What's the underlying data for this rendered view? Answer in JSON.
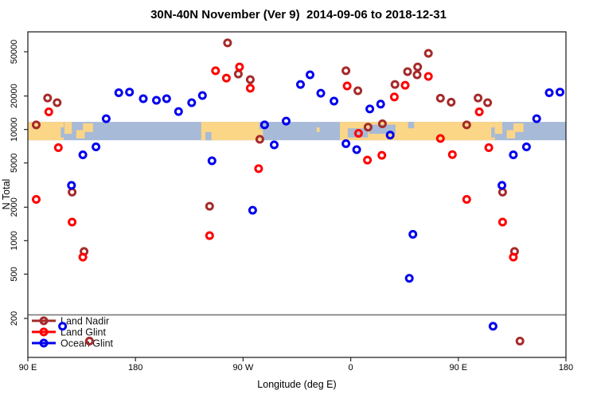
{
  "title": "30N-40N November (Ver 9)  2014-09-06 to 2018-12-31",
  "legend": {
    "entries": [
      {
        "label": "Land Nadir",
        "color": "#A52A2A"
      },
      {
        "label": "Land Glint",
        "color": "#FF0000"
      },
      {
        "label": "Ocean Glint",
        "color": "#0000EE"
      }
    ]
  },
  "chart_data": {
    "type": "scatter",
    "title": "30N-40N November (Ver 9)  2014-09-06 to 2018-12-31",
    "xlabel": "Longitude (deg E)",
    "ylabel": "N Total",
    "y_scale": "log",
    "x_axis": {
      "lon_plot_range": [
        90,
        540
      ],
      "tick_lon_plot": [
        90,
        180,
        270,
        360,
        450,
        540
      ],
      "tick_labels": [
        "90 E",
        "180",
        "90 W",
        "0",
        "90 E",
        "180"
      ],
      "note": "axis spans 450 deg of longitude; points with lon 90E-180E are drawn twice (wrap-around)"
    },
    "y_axis": {
      "ticks": [
        50000,
        20000,
        10000,
        5000,
        2000,
        1000,
        500,
        200
      ],
      "tick_labels": [
        "50000",
        "20000",
        "10000",
        "5000",
        "2000",
        "1000",
        "500",
        "200"
      ]
    },
    "threshold_line_n": 215,
    "series": [
      {
        "name": "Land Nadir",
        "color": "#A52A2A",
        "points": [
          [
            106.5,
            19200
          ],
          [
            114.5,
            17400
          ],
          [
            97,
            11000
          ],
          [
            127,
            2730
          ],
          [
            137,
            800
          ],
          [
            141.5,
            125
          ],
          [
            242,
            2040
          ],
          [
            257,
            60000
          ],
          [
            266,
            31500
          ],
          [
            276,
            28100
          ],
          [
            284,
            8160
          ],
          [
            356,
            33700
          ],
          [
            6,
            22300
          ],
          [
            14.5,
            10500
          ],
          [
            26.5,
            11250
          ],
          [
            37,
            25400
          ],
          [
            47.5,
            33100
          ],
          [
            56,
            36500
          ],
          [
            55.5,
            31000
          ],
          [
            65,
            48400
          ],
          [
            75,
            19100
          ],
          [
            84,
            17600
          ]
        ]
      },
      {
        "name": "Land Glint",
        "color": "#FF0000",
        "points": [
          [
            107.5,
            14400
          ],
          [
            115.5,
            6860
          ],
          [
            97,
            2350
          ],
          [
            127,
            1470
          ],
          [
            136,
            712
          ],
          [
            242,
            1110
          ],
          [
            247,
            33700
          ],
          [
            256,
            29000
          ],
          [
            267,
            36500
          ],
          [
            276,
            23500
          ],
          [
            283,
            4440
          ],
          [
            357,
            24600
          ],
          [
            6.5,
            9230
          ],
          [
            14,
            5310
          ],
          [
            26,
            5860
          ],
          [
            36.5,
            19600
          ],
          [
            45.5,
            25000
          ],
          [
            65,
            30000
          ],
          [
            75,
            8300
          ],
          [
            85,
            5950
          ]
        ]
      },
      {
        "name": "Ocean Glint",
        "color": "#0000EE",
        "points": [
          [
            155.5,
            12500
          ],
          [
            147,
            6980
          ],
          [
            136,
            5920
          ],
          [
            126.5,
            3140
          ],
          [
            119,
            170
          ],
          [
            166,
            21400
          ],
          [
            175,
            21700
          ],
          [
            186.5,
            18900
          ],
          [
            197.5,
            18300
          ],
          [
            206,
            18900
          ],
          [
            216,
            14500
          ],
          [
            227,
            17400
          ],
          [
            236,
            20200
          ],
          [
            244,
            5230
          ],
          [
            278,
            1880
          ],
          [
            288,
            11000
          ],
          [
            296,
            7270
          ],
          [
            306,
            11900
          ],
          [
            318,
            25400
          ],
          [
            326,
            31000
          ],
          [
            335,
            21200
          ],
          [
            346,
            18000
          ],
          [
            356,
            7450
          ],
          [
            5,
            6580
          ],
          [
            16,
            15300
          ],
          [
            25,
            16900
          ],
          [
            33,
            8900
          ],
          [
            52,
            1140
          ],
          [
            49,
            459
          ]
        ]
      }
    ],
    "map_band": {
      "description": "world-map strip for the 30N-40N latitude band",
      "ocean_color": "#A7BAD7",
      "land_color": "#FBD687",
      "n_range": [
        8000,
        11700
      ],
      "segments": [
        {
          "kind": "land",
          "name": "china",
          "x": [
            90,
            120
          ],
          "y": [
            0,
            1
          ]
        },
        {
          "kind": "water",
          "name": "yellow-sea",
          "x": [
            117.5,
            120
          ],
          "y": [
            0.3,
            0.85
          ]
        },
        {
          "kind": "land",
          "name": "korea",
          "x": [
            120.6,
            126.8
          ],
          "y": [
            0,
            0.65
          ]
        },
        {
          "kind": "land",
          "name": "japan-sw",
          "x": [
            130.5,
            137.5
          ],
          "y": [
            0.45,
            0.9
          ]
        },
        {
          "kind": "land",
          "name": "japan-ne",
          "x": [
            136,
            144.5
          ],
          "y": [
            0.08,
            0.55
          ]
        },
        {
          "kind": "land",
          "name": "north-america",
          "x": [
            235,
            286.5
          ],
          "y": [
            0,
            1
          ]
        },
        {
          "kind": "water",
          "name": "gulf-of-california",
          "x": [
            238.5,
            243.5
          ],
          "y": [
            0.55,
            1
          ]
        },
        {
          "kind": "water",
          "name": "ne-coast",
          "x": [
            283.5,
            286.5
          ],
          "y": [
            0,
            0.4
          ]
        },
        {
          "kind": "land",
          "name": "azores",
          "x": [
            331.5,
            334
          ],
          "y": [
            0.3,
            0.55
          ]
        },
        {
          "kind": "land",
          "name": "eurasia",
          "x": [
            351,
            480.5
          ],
          "y": [
            0,
            1
          ]
        },
        {
          "kind": "water",
          "name": "mediterranean-w",
          "x": [
            357.5,
            374.5
          ],
          "y": [
            0.35,
            0.85
          ]
        },
        {
          "kind": "water",
          "name": "mediterranean-e",
          "x": [
            375.5,
            397.5
          ],
          "y": [
            0.15,
            0.65
          ]
        },
        {
          "kind": "water",
          "name": "caspian",
          "x": [
            408,
            413
          ],
          "y": [
            0,
            0.35
          ]
        },
        {
          "kind": "water",
          "name": "yellow-sea-2",
          "x": [
            477.5,
            480.3
          ],
          "y": [
            0.3,
            0.85
          ]
        },
        {
          "kind": "land",
          "name": "korea-2",
          "x": [
            480.6,
            486.8
          ],
          "y": [
            0,
            0.65
          ]
        },
        {
          "kind": "land",
          "name": "japan-sw-2",
          "x": [
            490.5,
            497.5
          ],
          "y": [
            0.45,
            0.9
          ]
        },
        {
          "kind": "land",
          "name": "japan-ne-2",
          "x": [
            496,
            504.5
          ],
          "y": [
            0.08,
            0.55
          ]
        }
      ]
    }
  }
}
